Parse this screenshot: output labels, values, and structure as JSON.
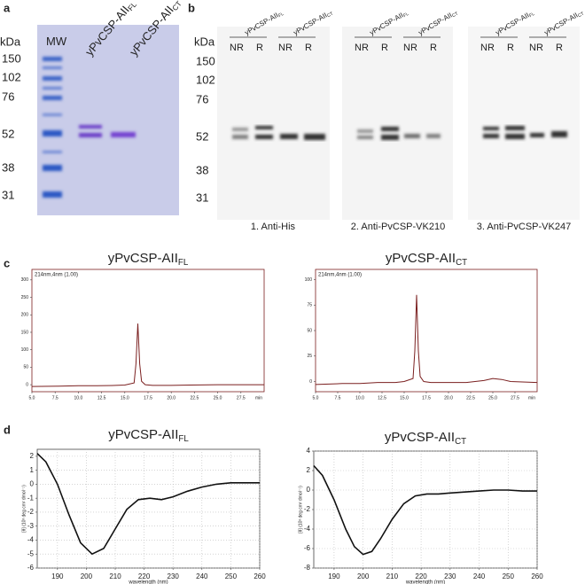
{
  "panel_a": {
    "letter": "a",
    "unit": "kDa",
    "markers": [
      "150",
      "102",
      "76",
      "52",
      "38",
      "31"
    ],
    "lanes": [
      {
        "name": "MW"
      },
      {
        "name": "yPvCSP-AII",
        "sub": "FL"
      },
      {
        "name": "yPvCSP-AII",
        "sub": "CT"
      }
    ]
  },
  "panel_b": {
    "letter": "b",
    "unit": "kDa",
    "markers": [
      "150",
      "102",
      "76",
      "52",
      "38",
      "31"
    ],
    "blots": [
      {
        "caption": "1. Anti-His",
        "groups": [
          {
            "name": "yPvCSP-AII",
            "sub": "FL",
            "lanes": [
              "NR",
              "R"
            ]
          },
          {
            "name": "yPvCSP-AII",
            "sub": "CT",
            "lanes": [
              "NR",
              "R"
            ]
          }
        ]
      },
      {
        "caption": "2. Anti-PvCSP-VK210",
        "groups": [
          {
            "name": "yPvCSP-AII",
            "sub": "FL",
            "lanes": [
              "NR",
              "R"
            ]
          },
          {
            "name": "yPvCSP-AII",
            "sub": "CT",
            "lanes": [
              "NR",
              "R"
            ]
          }
        ]
      },
      {
        "caption": "3. Anti-PvCSP-VK247",
        "groups": [
          {
            "name": "yPvCSP-AII",
            "sub": "FL",
            "lanes": [
              "NR",
              "R"
            ]
          },
          {
            "name": "yPvCSP-AII",
            "sub": "CT",
            "lanes": [
              "NR",
              "R"
            ]
          }
        ]
      }
    ]
  },
  "panel_c": {
    "letter": "c"
  },
  "panel_d": {
    "letter": "d"
  },
  "chart_data": [
    {
      "type": "line",
      "title": "yPvCSP-AII",
      "title_sub": "FL",
      "annotation": "214nm,4nm (1.00)",
      "x_unit": "min",
      "x": [
        5,
        8,
        10,
        12,
        14,
        15,
        16,
        16.2,
        16.4,
        16.6,
        16.8,
        17.2,
        18,
        20,
        22,
        25,
        27,
        30
      ],
      "series": [
        {
          "color": "#7a1f1f",
          "values": [
            -5,
            -4,
            -3,
            -3,
            -2,
            -1,
            5,
            60,
            175,
            60,
            10,
            0,
            -2,
            -2,
            -1,
            0,
            0,
            0
          ]
        }
      ],
      "xlim": [
        5,
        30
      ],
      "ylim": [
        -20,
        330
      ],
      "xticks": [
        {
          "value": 5,
          "label": "5.0"
        },
        {
          "value": 7.5,
          "label": "7.5"
        },
        {
          "value": 10,
          "label": "10.0"
        },
        {
          "value": 12.5,
          "label": "12.5"
        },
        {
          "value": 15,
          "label": "15.0"
        },
        {
          "value": 17.5,
          "label": "17.5"
        },
        {
          "value": 20,
          "label": "20.0"
        },
        {
          "value": 22.5,
          "label": "22.5"
        },
        {
          "value": 25,
          "label": "25.0"
        },
        {
          "value": 27.5,
          "label": "27.5"
        }
      ],
      "yticks": [
        0,
        50,
        100,
        150,
        200,
        250,
        300
      ],
      "grid": false
    },
    {
      "type": "line",
      "title": "yPvCSP-AII",
      "title_sub": "CT",
      "annotation": "214nm,4nm (1.00)",
      "x_unit": "min",
      "x": [
        5,
        8,
        10,
        12,
        14,
        15,
        16,
        16.2,
        16.4,
        16.6,
        16.8,
        17.2,
        18,
        20,
        22,
        24,
        25,
        26,
        27,
        30
      ],
      "series": [
        {
          "color": "#7a1f1f",
          "values": [
            -3,
            -2,
            -2,
            -1,
            -1,
            0,
            3,
            30,
            85,
            30,
            5,
            0,
            -1,
            -1,
            -1,
            1,
            3,
            2,
            0,
            -1
          ]
        }
      ],
      "xlim": [
        5,
        30
      ],
      "ylim": [
        -10,
        110
      ],
      "xticks": [
        {
          "value": 5,
          "label": "5.0"
        },
        {
          "value": 7.5,
          "label": "7.5"
        },
        {
          "value": 10,
          "label": "10.0"
        },
        {
          "value": 12.5,
          "label": "12.5"
        },
        {
          "value": 15,
          "label": "15.0"
        },
        {
          "value": 17.5,
          "label": "17.5"
        },
        {
          "value": 20,
          "label": "20.0"
        },
        {
          "value": 22.5,
          "label": "22.5"
        },
        {
          "value": 25,
          "label": "25.0"
        },
        {
          "value": 27.5,
          "label": "27.5"
        }
      ],
      "yticks": [
        0,
        25,
        50,
        75,
        100
      ],
      "grid": false
    },
    {
      "type": "line",
      "title": "yPvCSP-AII",
      "title_sub": "FL",
      "x_label": "wavelength (nm)",
      "y_label": "[θ] (10³ deg cm² dmol⁻¹)",
      "x": [
        183,
        186,
        190,
        194,
        198,
        202,
        206,
        210,
        214,
        218,
        222,
        226,
        230,
        235,
        240,
        245,
        250,
        255,
        260
      ],
      "series": [
        {
          "color": "#111111",
          "values": [
            2.2,
            1.6,
            0,
            -2.2,
            -4.2,
            -5,
            -4.6,
            -3.2,
            -1.8,
            -1.1,
            -1,
            -1.1,
            -0.9,
            -0.5,
            -0.2,
            0,
            0.1,
            0.1,
            0.1
          ]
        }
      ],
      "xlim": [
        183,
        260
      ],
      "ylim": [
        -6,
        2.5
      ],
      "xticks": [
        190,
        200,
        210,
        220,
        230,
        240,
        250,
        260
      ],
      "yticks": [
        -6,
        -5,
        -4,
        -3,
        -2,
        -1,
        0,
        1,
        2
      ],
      "grid": true
    },
    {
      "type": "line",
      "title": "yPvCSP-AII",
      "title_sub": "CT",
      "x_label": "wavelength (nm)",
      "y_label": "[θ] (10³ deg cm² dmol⁻¹)",
      "x": [
        183,
        186,
        190,
        194,
        197,
        200,
        203,
        206,
        210,
        214,
        218,
        222,
        226,
        230,
        235,
        240,
        245,
        250,
        255,
        260
      ],
      "series": [
        {
          "color": "#111111",
          "values": [
            2.5,
            1.5,
            -1,
            -4,
            -5.8,
            -6.6,
            -6.3,
            -5,
            -3,
            -1.4,
            -0.6,
            -0.4,
            -0.4,
            -0.3,
            -0.2,
            -0.1,
            0,
            0,
            -0.1,
            -0.1
          ]
        }
      ],
      "xlim": [
        183,
        260
      ],
      "ylim": [
        -8,
        4
      ],
      "xticks": [
        190,
        200,
        210,
        220,
        230,
        240,
        250,
        260
      ],
      "yticks": [
        -8,
        -6,
        -4,
        -2,
        0,
        2,
        4
      ],
      "grid": true
    }
  ]
}
